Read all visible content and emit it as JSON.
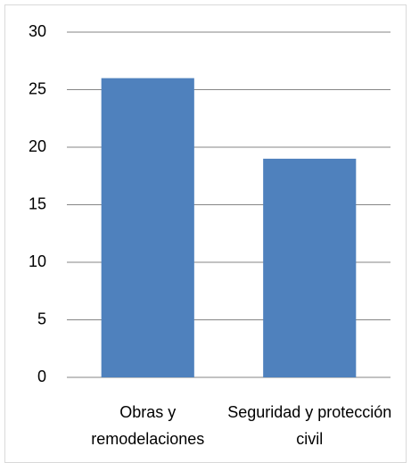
{
  "chart_data": {
    "type": "bar",
    "categories": [
      "Obras y remodelaciones",
      "Seguridad y protección civil"
    ],
    "values": [
      26,
      19
    ],
    "color": "#4f81bd",
    "ylim": [
      0,
      30
    ],
    "yticks": [
      0,
      5,
      10,
      15,
      20,
      25,
      30
    ],
    "grid": true
  }
}
